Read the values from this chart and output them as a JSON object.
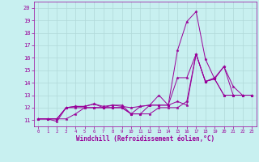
{
  "xlabel": "Windchill (Refroidissement éolien,°C)",
  "background_color": "#c8f0f0",
  "grid_color": "#b0d8d8",
  "line_color": "#990099",
  "ylim": [
    10.5,
    20.5
  ],
  "xlim": [
    -0.5,
    23.5
  ],
  "yticks": [
    11,
    12,
    13,
    14,
    15,
    16,
    17,
    18,
    19,
    20
  ],
  "xticks": [
    0,
    1,
    2,
    3,
    4,
    5,
    6,
    7,
    8,
    9,
    10,
    11,
    12,
    13,
    14,
    15,
    16,
    17,
    18,
    19,
    20,
    21,
    22,
    23
  ],
  "lines": [
    {
      "x": [
        0,
        1,
        2,
        3,
        4,
        5,
        6,
        7,
        8,
        9,
        10,
        11,
        12,
        13,
        14,
        15,
        16,
        17,
        18,
        19,
        20,
        21,
        22,
        23
      ],
      "y": [
        11.1,
        11.1,
        11.1,
        12.0,
        12.1,
        12.1,
        12.3,
        12.1,
        12.2,
        12.2,
        11.5,
        12.1,
        12.2,
        13.0,
        12.2,
        16.6,
        18.9,
        19.7,
        15.9,
        14.3,
        15.3,
        13.7,
        13.0,
        13.0
      ]
    },
    {
      "x": [
        0,
        1,
        2,
        3,
        4,
        5,
        6,
        7,
        8,
        9,
        10,
        11,
        12,
        13,
        14,
        15,
        16,
        17,
        18,
        19,
        20,
        21,
        22,
        23
      ],
      "y": [
        11.1,
        11.1,
        10.9,
        12.0,
        12.1,
        12.1,
        12.3,
        12.0,
        12.2,
        12.1,
        12.0,
        12.1,
        12.2,
        12.2,
        12.2,
        12.5,
        12.2,
        16.3,
        14.1,
        14.4,
        15.3,
        13.0,
        13.0,
        13.0
      ]
    },
    {
      "x": [
        0,
        1,
        2,
        3,
        4,
        5,
        6,
        7,
        8,
        9,
        10,
        11,
        12,
        13,
        14,
        15,
        16,
        17,
        18,
        19,
        20,
        21,
        22,
        23
      ],
      "y": [
        11.1,
        11.1,
        11.1,
        12.0,
        12.0,
        12.0,
        12.0,
        12.0,
        12.0,
        12.0,
        11.5,
        11.5,
        12.2,
        12.2,
        12.2,
        14.4,
        14.4,
        16.3,
        14.1,
        14.3,
        13.0,
        13.0,
        13.0,
        13.0
      ]
    },
    {
      "x": [
        0,
        1,
        2,
        3,
        4,
        5,
        6,
        7,
        8,
        9,
        10,
        11,
        12,
        13,
        14,
        15,
        16,
        17,
        18,
        19,
        20,
        21,
        22,
        23
      ],
      "y": [
        11.1,
        11.1,
        11.1,
        11.1,
        11.5,
        12.0,
        12.0,
        12.0,
        12.0,
        12.0,
        11.5,
        11.5,
        11.5,
        12.0,
        12.0,
        12.0,
        12.5,
        16.3,
        14.1,
        14.3,
        13.0,
        13.0,
        13.0,
        13.0
      ]
    }
  ]
}
